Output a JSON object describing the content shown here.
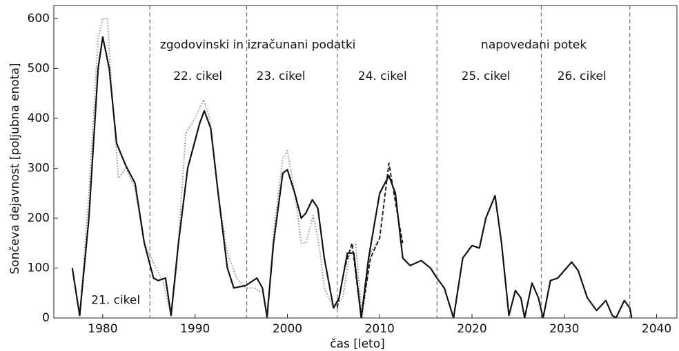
{
  "chart_data": {
    "type": "line",
    "xlabel": "čas [leto]",
    "ylabel": "Sončeva dejavnost [poljubna enota]",
    "xlim": [
      1974.7,
      2042.2
    ],
    "ylim": [
      0,
      626
    ],
    "xticks": [
      1980,
      1990,
      2000,
      2010,
      2020,
      2030,
      2040
    ],
    "yticks": [
      0,
      100,
      200,
      300,
      400,
      500,
      600
    ],
    "vlines": [
      1985.1,
      1995.6,
      2005.4,
      2016.2,
      2027.5,
      2037.1
    ],
    "annotations": [
      {
        "text": "zgodovinski in izračunani podatki",
        "x": 1996.8,
        "y": 547
      },
      {
        "text": "napovedani potek",
        "x": 2026.7,
        "y": 547
      },
      {
        "text": "21. cikel",
        "x": 1981.4,
        "y": 35
      },
      {
        "text": "22. cikel",
        "x": 1990.3,
        "y": 484
      },
      {
        "text": "23. cikel",
        "x": 1999.3,
        "y": 484
      },
      {
        "text": "24. cikel",
        "x": 2010.3,
        "y": 484
      },
      {
        "text": "25. cikel",
        "x": 2021.5,
        "y": 484
      },
      {
        "text": "26. cikel",
        "x": 2031.9,
        "y": 484
      }
    ],
    "series": [
      {
        "style": "dotted",
        "color": "#888888",
        "x": [
          1976.7,
          1977.5,
          1978.5,
          1979.5,
          1980,
          1980.5,
          1981,
          1981.7,
          1982.5,
          1983.5,
          1984.5,
          1985.5,
          1986.5,
          1987.4,
          1988,
          1989,
          1990,
          1990.9,
          1991.6,
          1992.5,
          1993.5,
          1994.5,
          1995.5,
          1996.5,
          1997.3,
          1997.8,
          1998.5,
          1999.5,
          2000,
          2000.8,
          2001.5,
          2002,
          2002.8,
          2003.4,
          2004,
          2005,
          2006,
          2006.8,
          2007.4,
          2008.1,
          2009,
          2009.8
        ],
        "values": [
          100,
          5,
          250,
          560,
          600,
          600,
          450,
          280,
          300,
          260,
          150,
          110,
          75,
          5,
          100,
          370,
          400,
          437,
          400,
          250,
          130,
          80,
          60,
          60,
          50,
          2,
          170,
          320,
          335,
          250,
          150,
          150,
          205,
          150,
          60,
          20,
          40,
          135,
          150,
          0,
          130,
          155
        ]
      },
      {
        "style": "dashed",
        "color": "#111111",
        "x": [
          2005.4,
          2006.2,
          2007,
          2008,
          2009,
          2010,
          2011,
          2012,
          2012.5
        ],
        "values": [
          20,
          100,
          150,
          0,
          120,
          160,
          310,
          200,
          150
        ]
      },
      {
        "style": "solid",
        "color": "#111111",
        "x": [
          1976.7,
          1977.5,
          1978.5,
          1979.5,
          1980,
          1980.7,
          1981.5,
          1982.5,
          1983.5,
          1984.5,
          1985.5,
          1986,
          1986.8,
          1987.4,
          1988.2,
          1989.2,
          1990.5,
          1991,
          1991.7,
          1992.5,
          1993.5,
          1994.2,
          1995.5,
          1996.7,
          1997.3,
          1997.8,
          1998.5,
          1999.5,
          2000,
          2000.8,
          2001.5,
          2002,
          2002.7,
          2003.3,
          2004,
          2005,
          2005.6,
          2006.5,
          2007.2,
          2008,
          2008.8,
          2010,
          2011,
          2011.7,
          2012.5,
          2013.3,
          2014.5,
          2015.5,
          2016.2,
          2017,
          2018,
          2019,
          2020,
          2020.8,
          2021.5,
          2022.5,
          2023.2,
          2024,
          2024.7,
          2025.3,
          2025.7,
          2026.5,
          2027.2,
          2027.7,
          2028.5,
          2029.3,
          2030,
          2030.8,
          2031.5,
          2032.5,
          2033.5,
          2034.5,
          2035.2,
          2035.6,
          2036.5,
          2037.1,
          2037.3
        ],
        "values": [
          100,
          5,
          200,
          500,
          563,
          500,
          350,
          305,
          270,
          150,
          80,
          75,
          80,
          5,
          150,
          300,
          390,
          415,
          380,
          250,
          100,
          60,
          65,
          80,
          60,
          2,
          150,
          290,
          297,
          250,
          200,
          210,
          237,
          220,
          120,
          20,
          40,
          130,
          130,
          0,
          120,
          250,
          285,
          250,
          120,
          105,
          115,
          100,
          80,
          60,
          0,
          120,
          145,
          140,
          200,
          245,
          150,
          5,
          55,
          40,
          0,
          70,
          40,
          0,
          75,
          80,
          95,
          112,
          95,
          40,
          15,
          35,
          5,
          0,
          35,
          20,
          0
        ]
      }
    ]
  }
}
